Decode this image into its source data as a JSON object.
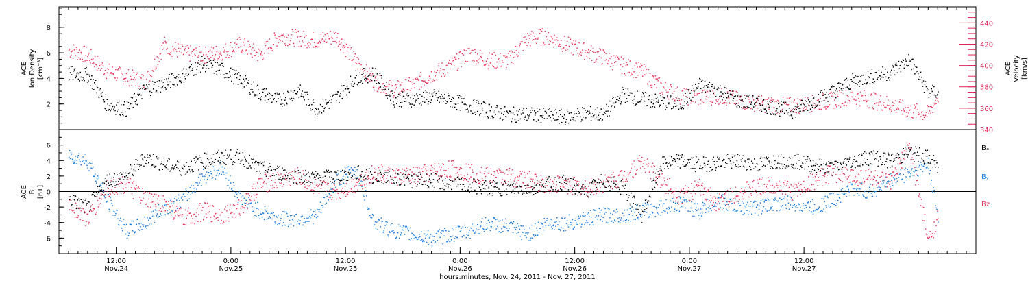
{
  "chart_data": [
    {
      "type": "scatter",
      "panel": "top",
      "ylabel": [
        "ACE",
        "Ion Density",
        "[cm⁻³]"
      ],
      "ylim": [
        0,
        9.6
      ],
      "yticks": [
        "2",
        "4",
        "6",
        "8"
      ],
      "right_ylabel": [
        "ACE",
        "Velocity",
        "[km/s]"
      ],
      "right_ylim": [
        340,
        455
      ],
      "right_yticks": [
        "340",
        "360",
        "380",
        "400",
        "420",
        "440"
      ],
      "x_range_hours": [
        6,
        102
      ],
      "series": [
        {
          "color": "#000000",
          "axis": "left",
          "x": [
            7,
            9,
            11,
            13,
            15,
            17,
            19,
            21,
            23,
            25,
            27,
            29,
            31,
            33,
            35,
            37,
            39,
            41,
            43,
            45,
            47,
            49,
            51,
            53,
            55,
            57,
            59,
            61,
            63,
            65,
            67,
            69,
            71,
            73,
            75,
            77,
            79,
            81,
            83,
            85,
            87,
            89,
            91,
            93,
            95,
            97,
            98
          ],
          "values": [
            4.4,
            4.3,
            2.0,
            1.6,
            3.2,
            3.6,
            4.3,
            5.2,
            4.7,
            3.9,
            2.9,
            2.3,
            3.1,
            1.6,
            2.5,
            4.1,
            4.4,
            2.4,
            2.4,
            2.6,
            2.3,
            1.9,
            1.5,
            1.2,
            1.2,
            1.1,
            1.0,
            1.3,
            1.2,
            2.8,
            2.4,
            2.2,
            2.0,
            3.5,
            3.1,
            2.3,
            2.1,
            1.7,
            1.5,
            2.3,
            3.0,
            3.8,
            4.2,
            4.5,
            5.5,
            2.9,
            3.0
          ]
        },
        {
          "color": "#e8395f",
          "axis": "right",
          "x": [
            7,
            9,
            11,
            13,
            15,
            17,
            19,
            21,
            23,
            25,
            27,
            29,
            31,
            33,
            35,
            37,
            39,
            41,
            43,
            45,
            47,
            49,
            51,
            53,
            55,
            57,
            59,
            61,
            63,
            65,
            67,
            69,
            71,
            73,
            75,
            77,
            79,
            81,
            83,
            85,
            87,
            89,
            91,
            93,
            95,
            97,
            98
          ],
          "values": [
            415,
            410,
            395,
            390,
            385,
            420,
            412,
            410,
            413,
            420,
            410,
            428,
            426,
            424,
            428,
            405,
            385,
            378,
            382,
            392,
            400,
            412,
            405,
            405,
            425,
            428,
            420,
            414,
            408,
            400,
            395,
            380,
            372,
            370,
            372,
            368,
            365,
            363,
            363,
            365,
            368,
            372,
            368,
            364,
            358,
            355,
            372
          ]
        }
      ]
    },
    {
      "type": "scatter",
      "panel": "bottom",
      "ylabel": [
        "ACE",
        "B",
        "[nT]"
      ],
      "ylim": [
        -8,
        8
      ],
      "yticks": [
        "-6",
        "-4",
        "-2",
        "0",
        "2",
        "4",
        "6"
      ],
      "zero_line": true,
      "legend_position": "right",
      "series": [
        {
          "name": "Bₓ",
          "color": "#000000",
          "x": [
            7,
            9,
            11,
            13,
            15,
            17,
            19,
            21,
            23,
            25,
            27,
            29,
            31,
            33,
            35,
            37,
            39,
            41,
            43,
            45,
            47,
            49,
            51,
            53,
            55,
            57,
            59,
            61,
            63,
            65,
            67,
            69,
            71,
            73,
            75,
            77,
            79,
            81,
            83,
            85,
            87,
            89,
            91,
            93,
            95,
            97,
            98
          ],
          "values": [
            -1.0,
            -2.0,
            1.5,
            2.0,
            4.5,
            3.5,
            3.0,
            4.0,
            4.5,
            4.5,
            3.0,
            2.5,
            2.0,
            1.8,
            2.0,
            2.5,
            2.0,
            2.0,
            1.5,
            1.5,
            1.0,
            0.8,
            0.5,
            0.5,
            0.5,
            1.0,
            1.2,
            0.0,
            1.5,
            0.5,
            -3.0,
            3.5,
            4.0,
            3.5,
            3.8,
            4.0,
            3.5,
            4.0,
            4.0,
            3.5,
            3.0,
            4.0,
            4.5,
            4.0,
            5.0,
            4.5,
            3.0
          ]
        },
        {
          "name": "Bᵧ",
          "color": "#1f7fe0",
          "x": [
            7,
            9,
            11,
            13,
            15,
            17,
            19,
            21,
            23,
            25,
            27,
            29,
            31,
            33,
            35,
            37,
            39,
            41,
            43,
            45,
            47,
            49,
            51,
            53,
            55,
            57,
            59,
            61,
            63,
            65,
            67,
            69,
            71,
            73,
            75,
            77,
            79,
            81,
            83,
            85,
            87,
            89,
            91,
            93,
            95,
            97,
            98
          ],
          "values": [
            4.8,
            4.0,
            -1.0,
            -5.0,
            -4.0,
            -2.0,
            -1.0,
            2.0,
            3.0,
            -1.0,
            -2.5,
            -3.5,
            -3.5,
            -3.0,
            1.5,
            3.0,
            -4.0,
            -5.0,
            -5.5,
            -6.0,
            -5.5,
            -5.0,
            -4.0,
            -4.5,
            -5.5,
            -4.0,
            -4.0,
            -3.5,
            -3.0,
            -3.0,
            -2.5,
            -2.0,
            -1.5,
            -2.5,
            -1.0,
            -2.0,
            -2.0,
            -1.5,
            -1.5,
            -2.0,
            -1.0,
            0.5,
            0.0,
            1.5,
            2.5,
            3.5,
            -3.5
          ]
        },
        {
          "name": "Bz",
          "color": "#e8395f",
          "x": [
            7,
            9,
            11,
            13,
            15,
            17,
            19,
            21,
            23,
            25,
            27,
            29,
            31,
            33,
            35,
            37,
            39,
            41,
            43,
            45,
            47,
            49,
            51,
            53,
            55,
            57,
            59,
            61,
            63,
            65,
            67,
            69,
            71,
            73,
            75,
            77,
            79,
            81,
            83,
            85,
            87,
            89,
            91,
            93,
            95,
            97,
            98
          ],
          "values": [
            -1.5,
            -3.5,
            0.5,
            1.0,
            -1.0,
            -1.5,
            -3.5,
            -2.5,
            -3.0,
            -2.0,
            1.0,
            1.5,
            2.0,
            0.5,
            0.0,
            1.0,
            2.5,
            2.0,
            2.0,
            2.5,
            3.0,
            2.5,
            2.0,
            2.0,
            1.5,
            1.0,
            1.0,
            0.5,
            1.0,
            2.0,
            4.0,
            1.5,
            -0.5,
            0.5,
            -1.5,
            0.0,
            0.5,
            1.0,
            0.0,
            1.5,
            2.5,
            2.0,
            2.0,
            1.0,
            6.0,
            -6.5,
            -3.0
          ]
        }
      ]
    }
  ],
  "x_axis": {
    "major_ticks": [
      {
        "time": "12:00",
        "date": "Nov.24"
      },
      {
        "time": "0:00",
        "date": "Nov.25"
      },
      {
        "time": "12:00",
        "date": "Nov.25"
      },
      {
        "time": "0:00",
        "date": "Nov.26"
      },
      {
        "time": "12:00",
        "date": "Nov.26"
      },
      {
        "time": "0:00",
        "date": "Nov.27"
      },
      {
        "time": "12:00",
        "date": "Nov.27"
      }
    ],
    "title": "hours:minutes, Nov. 24, 2011 - Nov. 27, 2011"
  }
}
